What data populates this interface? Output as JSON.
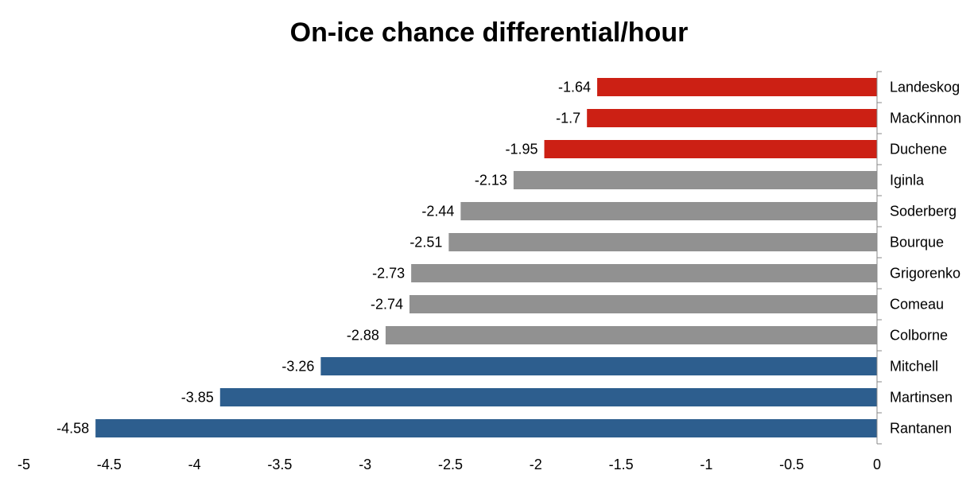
{
  "chart_data": {
    "type": "bar",
    "orientation": "horizontal",
    "title": "On-ice chance differential/hour",
    "xlabel": "",
    "ylabel": "",
    "xlim": [
      -5,
      0
    ],
    "xticks": [
      -5,
      -4.5,
      -4,
      -3.5,
      -3,
      -2.5,
      -2,
      -1.5,
      -1,
      -0.5,
      0
    ],
    "xtick_labels": [
      "-5",
      "-4.5",
      "-4",
      "-3.5",
      "-3",
      "-2.5",
      "-2",
      "-1.5",
      "-1",
      "-0.5",
      "0"
    ],
    "categories": [
      "Landeskog",
      "MacKinnon",
      "Duchene",
      "Iginla",
      "Soderberg",
      "Bourque",
      "Grigorenko",
      "Comeau",
      "Colborne",
      "Mitchell",
      "Martinsen",
      "Rantanen"
    ],
    "values": [
      -1.64,
      -1.7,
      -1.95,
      -2.13,
      -2.44,
      -2.51,
      -2.73,
      -2.74,
      -2.88,
      -3.26,
      -3.85,
      -4.58
    ],
    "value_labels": [
      "-1.64",
      "-1.7",
      "-1.95",
      "-2.13",
      "-2.44",
      "-2.51",
      "-2.73",
      "-2.74",
      "-2.88",
      "-3.26",
      "-3.85",
      "-4.58"
    ],
    "bar_colors": [
      "#cc2014",
      "#cc2014",
      "#cc2014",
      "#919191",
      "#919191",
      "#919191",
      "#919191",
      "#919191",
      "#919191",
      "#2d5e8e",
      "#2d5e8e",
      "#2d5e8e"
    ],
    "grid": false,
    "legend": "none",
    "category_axis_side": "right"
  }
}
